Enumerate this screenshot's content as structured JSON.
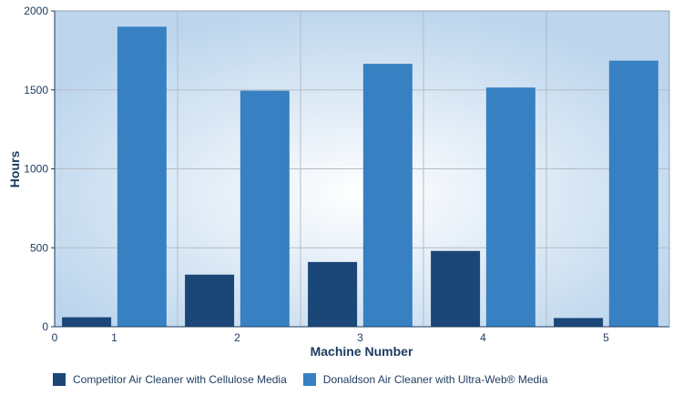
{
  "chart_data": {
    "type": "bar",
    "categories": [
      "1",
      "2",
      "3",
      "4",
      "5"
    ],
    "series": [
      {
        "name": "Competitor Air Cleaner with Cellulose Media",
        "values": [
          60,
          330,
          410,
          480,
          55
        ],
        "color": "#1a4778"
      },
      {
        "name": "Donaldson Air Cleaner with Ultra-Web® Media",
        "values": [
          1900,
          1495,
          1665,
          1515,
          1685
        ],
        "color": "#3781c2"
      }
    ],
    "x_origin_label": "0",
    "xlabel": "Machine Number",
    "ylabel": "Hours",
    "ylim": [
      0,
      2000
    ],
    "yticks": [
      0,
      500,
      1000,
      1500,
      2000
    ],
    "grid": true,
    "legend_position": "bottom-left"
  }
}
